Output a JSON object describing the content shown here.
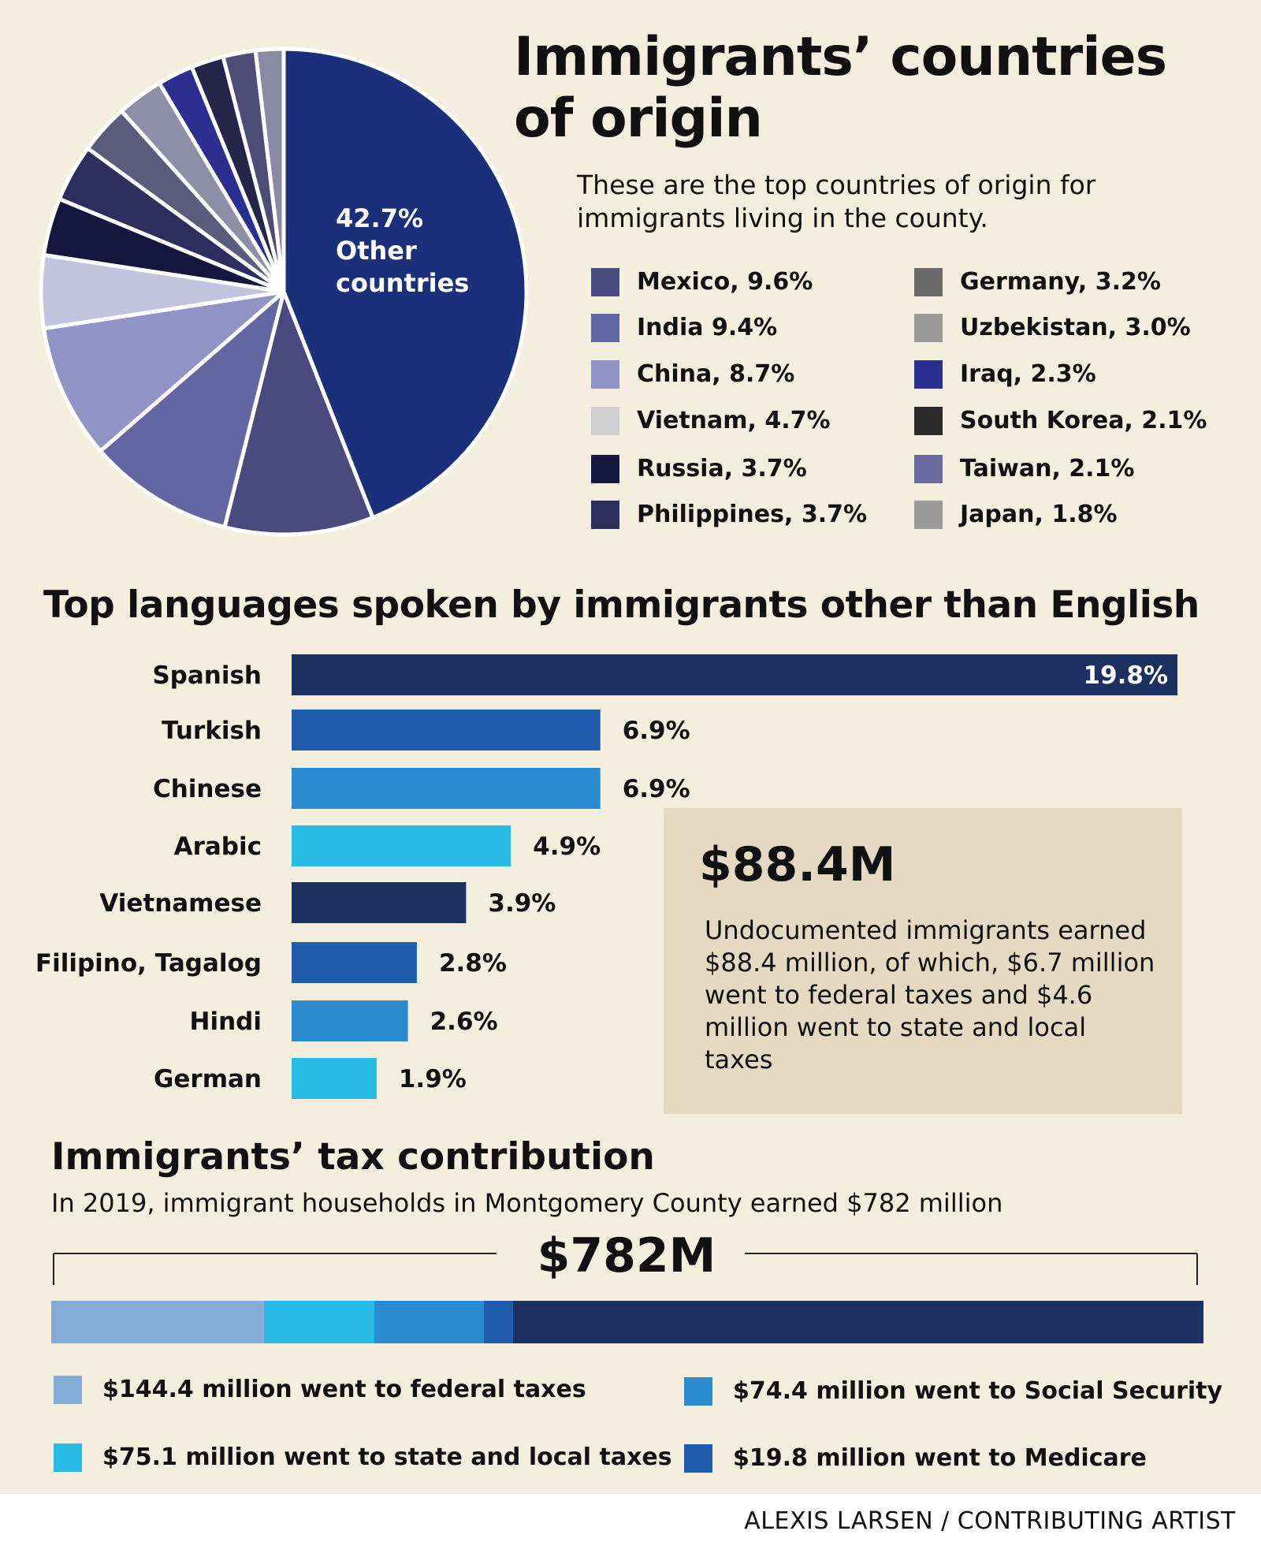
{
  "colors": {
    "background": "#f4eedf",
    "callout_bg": "#e5d9c2",
    "other_countries": "#1c2f7a"
  },
  "header": {
    "title": "Immigrants’ countries of origin",
    "subtitle": "These are the top countries of origin for immigrants living in the county."
  },
  "legend": [
    {
      "label": "Mexico, 9.6%",
      "color": "#4a4a7e"
    },
    {
      "label": "India 9.4%",
      "color": "#6266a2"
    },
    {
      "label": "China, 8.7%",
      "color": "#8f93c6"
    },
    {
      "label": "Vietnam, 4.7%",
      "color": "#cfcfd2"
    },
    {
      "label": "Russia, 3.7%",
      "color": "#14163e"
    },
    {
      "label": "Philippines, 3.7%",
      "color": "#2d2d5e"
    },
    {
      "label": "Germany, 3.2%",
      "color": "#696969"
    },
    {
      "label": "Uzbekistan, 3.0%",
      "color": "#9b9b9b"
    },
    {
      "label": "Iraq, 2.3%",
      "color": "#2b2f8f"
    },
    {
      "label": "South Korea, 2.1%",
      "color": "#2a2a2a"
    },
    {
      "label": "Taiwan, 2.1%",
      "color": "#6a6aa0"
    },
    {
      "label": "Japan, 1.8%",
      "color": "#9a9a9a"
    }
  ],
  "pie_label": {
    "value": "42.7%",
    "line1": "Other",
    "line2": "countries"
  },
  "languages": {
    "title": "Top languages spoken by immigrants other than English"
  },
  "callout": {
    "value": "$88.4M",
    "text": "Undocumented immigrants earned $88.4 million, of which, $6.7 million went to federal taxes and $4.6 million went to state and local taxes"
  },
  "tax": {
    "title": "Immigrants’ tax contribution",
    "subtitle": "In 2019, immigrant households in Montgomery County earned $782 million",
    "total_label": "$782M",
    "items": [
      {
        "label": "$144.4 million went to federal taxes",
        "color": "#84acd9"
      },
      {
        "label": "$75.1 million went to state and local taxes",
        "color": "#27bbe6"
      },
      {
        "label": "$74.4 million went to Social Security",
        "color": "#2b8bcf"
      },
      {
        "label": "$19.8 million went to Medicare",
        "color": "#1f5cad"
      }
    ]
  },
  "credit": "ALEXIS LARSEN / CONTRIBUTING ARTIST",
  "chart_data": [
    {
      "type": "pie",
      "title": "Immigrants’ countries of origin",
      "slices": [
        {
          "label": "Other countries",
          "value": 42.7,
          "color": "#1c2f7a"
        },
        {
          "label": "Mexico",
          "value": 9.6,
          "color": "#4a4a7e"
        },
        {
          "label": "India",
          "value": 9.4,
          "color": "#6266a2"
        },
        {
          "label": "China",
          "value": 8.7,
          "color": "#8f93c6"
        },
        {
          "label": "Vietnam",
          "value": 4.7,
          "color": "#c3c3dc"
        },
        {
          "label": "Russia",
          "value": 3.7,
          "color": "#14163e"
        },
        {
          "label": "Philippines",
          "value": 3.7,
          "color": "#2d2d5e"
        },
        {
          "label": "Germany",
          "value": 3.2,
          "color": "#5b5b7c"
        },
        {
          "label": "Uzbekistan",
          "value": 3.0,
          "color": "#8e8ea6"
        },
        {
          "label": "Iraq",
          "value": 2.3,
          "color": "#2b2f8f"
        },
        {
          "label": "South Korea",
          "value": 2.1,
          "color": "#25254a"
        },
        {
          "label": "Taiwan",
          "value": 2.1,
          "color": "#4d4d78"
        },
        {
          "label": "Japan",
          "value": 1.8,
          "color": "#8a8aa4"
        }
      ]
    },
    {
      "type": "bar",
      "orientation": "horizontal",
      "title": "Top languages spoken by immigrants other than English",
      "categories": [
        "Spanish",
        "Turkish",
        "Chinese",
        "Arabic",
        "Vietnamese",
        "Filipino, Tagalog",
        "Hindi",
        "German"
      ],
      "values": [
        19.8,
        6.9,
        6.9,
        4.9,
        3.9,
        2.8,
        2.6,
        1.9
      ],
      "value_labels": [
        "19.8%",
        "6.9%",
        "6.9%",
        "4.9%",
        "3.9%",
        "2.8%",
        "2.6%",
        "1.9%"
      ],
      "colors": [
        "#1c3160",
        "#1f5cad",
        "#2b8bcf",
        "#27bbe6",
        "#1c3160",
        "#1f5cad",
        "#2b8bcf",
        "#27bbe6"
      ],
      "xlim": [
        0,
        19.8
      ]
    },
    {
      "type": "bar",
      "orientation": "stacked-horizontal",
      "title": "Immigrants’ tax contribution",
      "total": 782,
      "unit": "$ million",
      "segments": [
        {
          "label": "federal taxes",
          "value": 144.4,
          "color": "#84acd9"
        },
        {
          "label": "state and local taxes",
          "value": 75.1,
          "color": "#27bbe6"
        },
        {
          "label": "Social Security",
          "value": 74.4,
          "color": "#2b8bcf"
        },
        {
          "label": "Medicare",
          "value": 19.8,
          "color": "#1f5cad"
        },
        {
          "label": "remainder",
          "value": 468.3,
          "color": "#1c3160"
        }
      ]
    }
  ]
}
